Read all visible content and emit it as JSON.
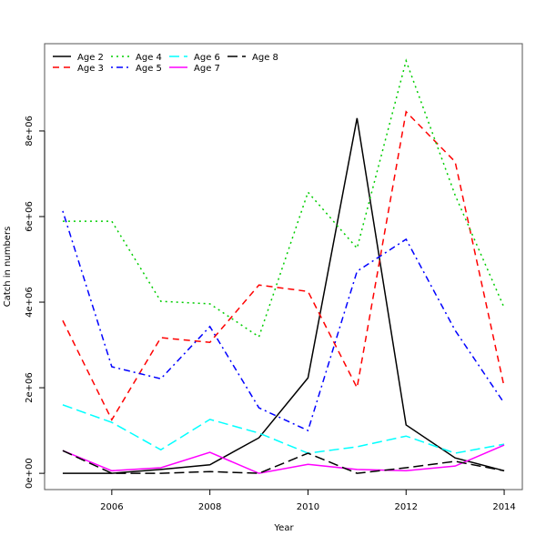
{
  "chart_data": {
    "type": "line",
    "title": "",
    "xlabel": "Year",
    "ylabel": "Catch in numbers",
    "xlim": [
      2004.63,
      2014.37
    ],
    "ylim": [
      -380000,
      10040000
    ],
    "xticks": [
      2006,
      2008,
      2010,
      2012,
      2014
    ],
    "xtick_labels": [
      "2006",
      "2008",
      "2010",
      "2012",
      "2014"
    ],
    "yticks": [
      0,
      2000000,
      4000000,
      6000000,
      8000000
    ],
    "ytick_labels": [
      "0e+00",
      "2e+06",
      "4e+06",
      "6e+06",
      "8e+06"
    ],
    "grid": false,
    "legend_position": "top-left",
    "x": [
      2005,
      2006,
      2007,
      2008,
      2009,
      2010,
      2011,
      2012,
      2013,
      2014
    ],
    "series": [
      {
        "name": "Age 2",
        "color": "#000000",
        "dash": "solid",
        "values": [
          0,
          0,
          90000,
          200000,
          830000,
          2230000,
          8300000,
          1130000,
          360000,
          60000
        ]
      },
      {
        "name": "Age 3",
        "color": "#FF0000",
        "dash": "dashed",
        "values": [
          3570000,
          1250000,
          3170000,
          3060000,
          4400000,
          4250000,
          2000000,
          8450000,
          7280000,
          2020000
        ]
      },
      {
        "name": "Age 4",
        "color": "#00CD00",
        "dash": "dotted",
        "values": [
          5890000,
          5890000,
          4020000,
          3960000,
          3190000,
          6570000,
          5260000,
          9640000,
          6500000,
          3870000
        ]
      },
      {
        "name": "Age 5",
        "color": "#0000FF",
        "dash": "dotdash",
        "values": [
          6130000,
          2490000,
          2210000,
          3430000,
          1530000,
          1000000,
          4720000,
          5470000,
          3340000,
          1640000
        ]
      },
      {
        "name": "Age 6",
        "color": "#00FFFF",
        "dash": "longdash",
        "values": [
          1600000,
          1190000,
          550000,
          1260000,
          940000,
          470000,
          620000,
          870000,
          470000,
          680000
        ]
      },
      {
        "name": "Age 7",
        "color": "#FF00FF",
        "dash": "solid",
        "values": [
          530000,
          60000,
          130000,
          490000,
          0,
          210000,
          90000,
          60000,
          170000,
          660000
        ]
      },
      {
        "name": "Age 8",
        "color": "#000000",
        "dash": "longdash",
        "values": [
          530000,
          0,
          0,
          40000,
          0,
          470000,
          0,
          130000,
          280000,
          60000
        ]
      }
    ]
  }
}
